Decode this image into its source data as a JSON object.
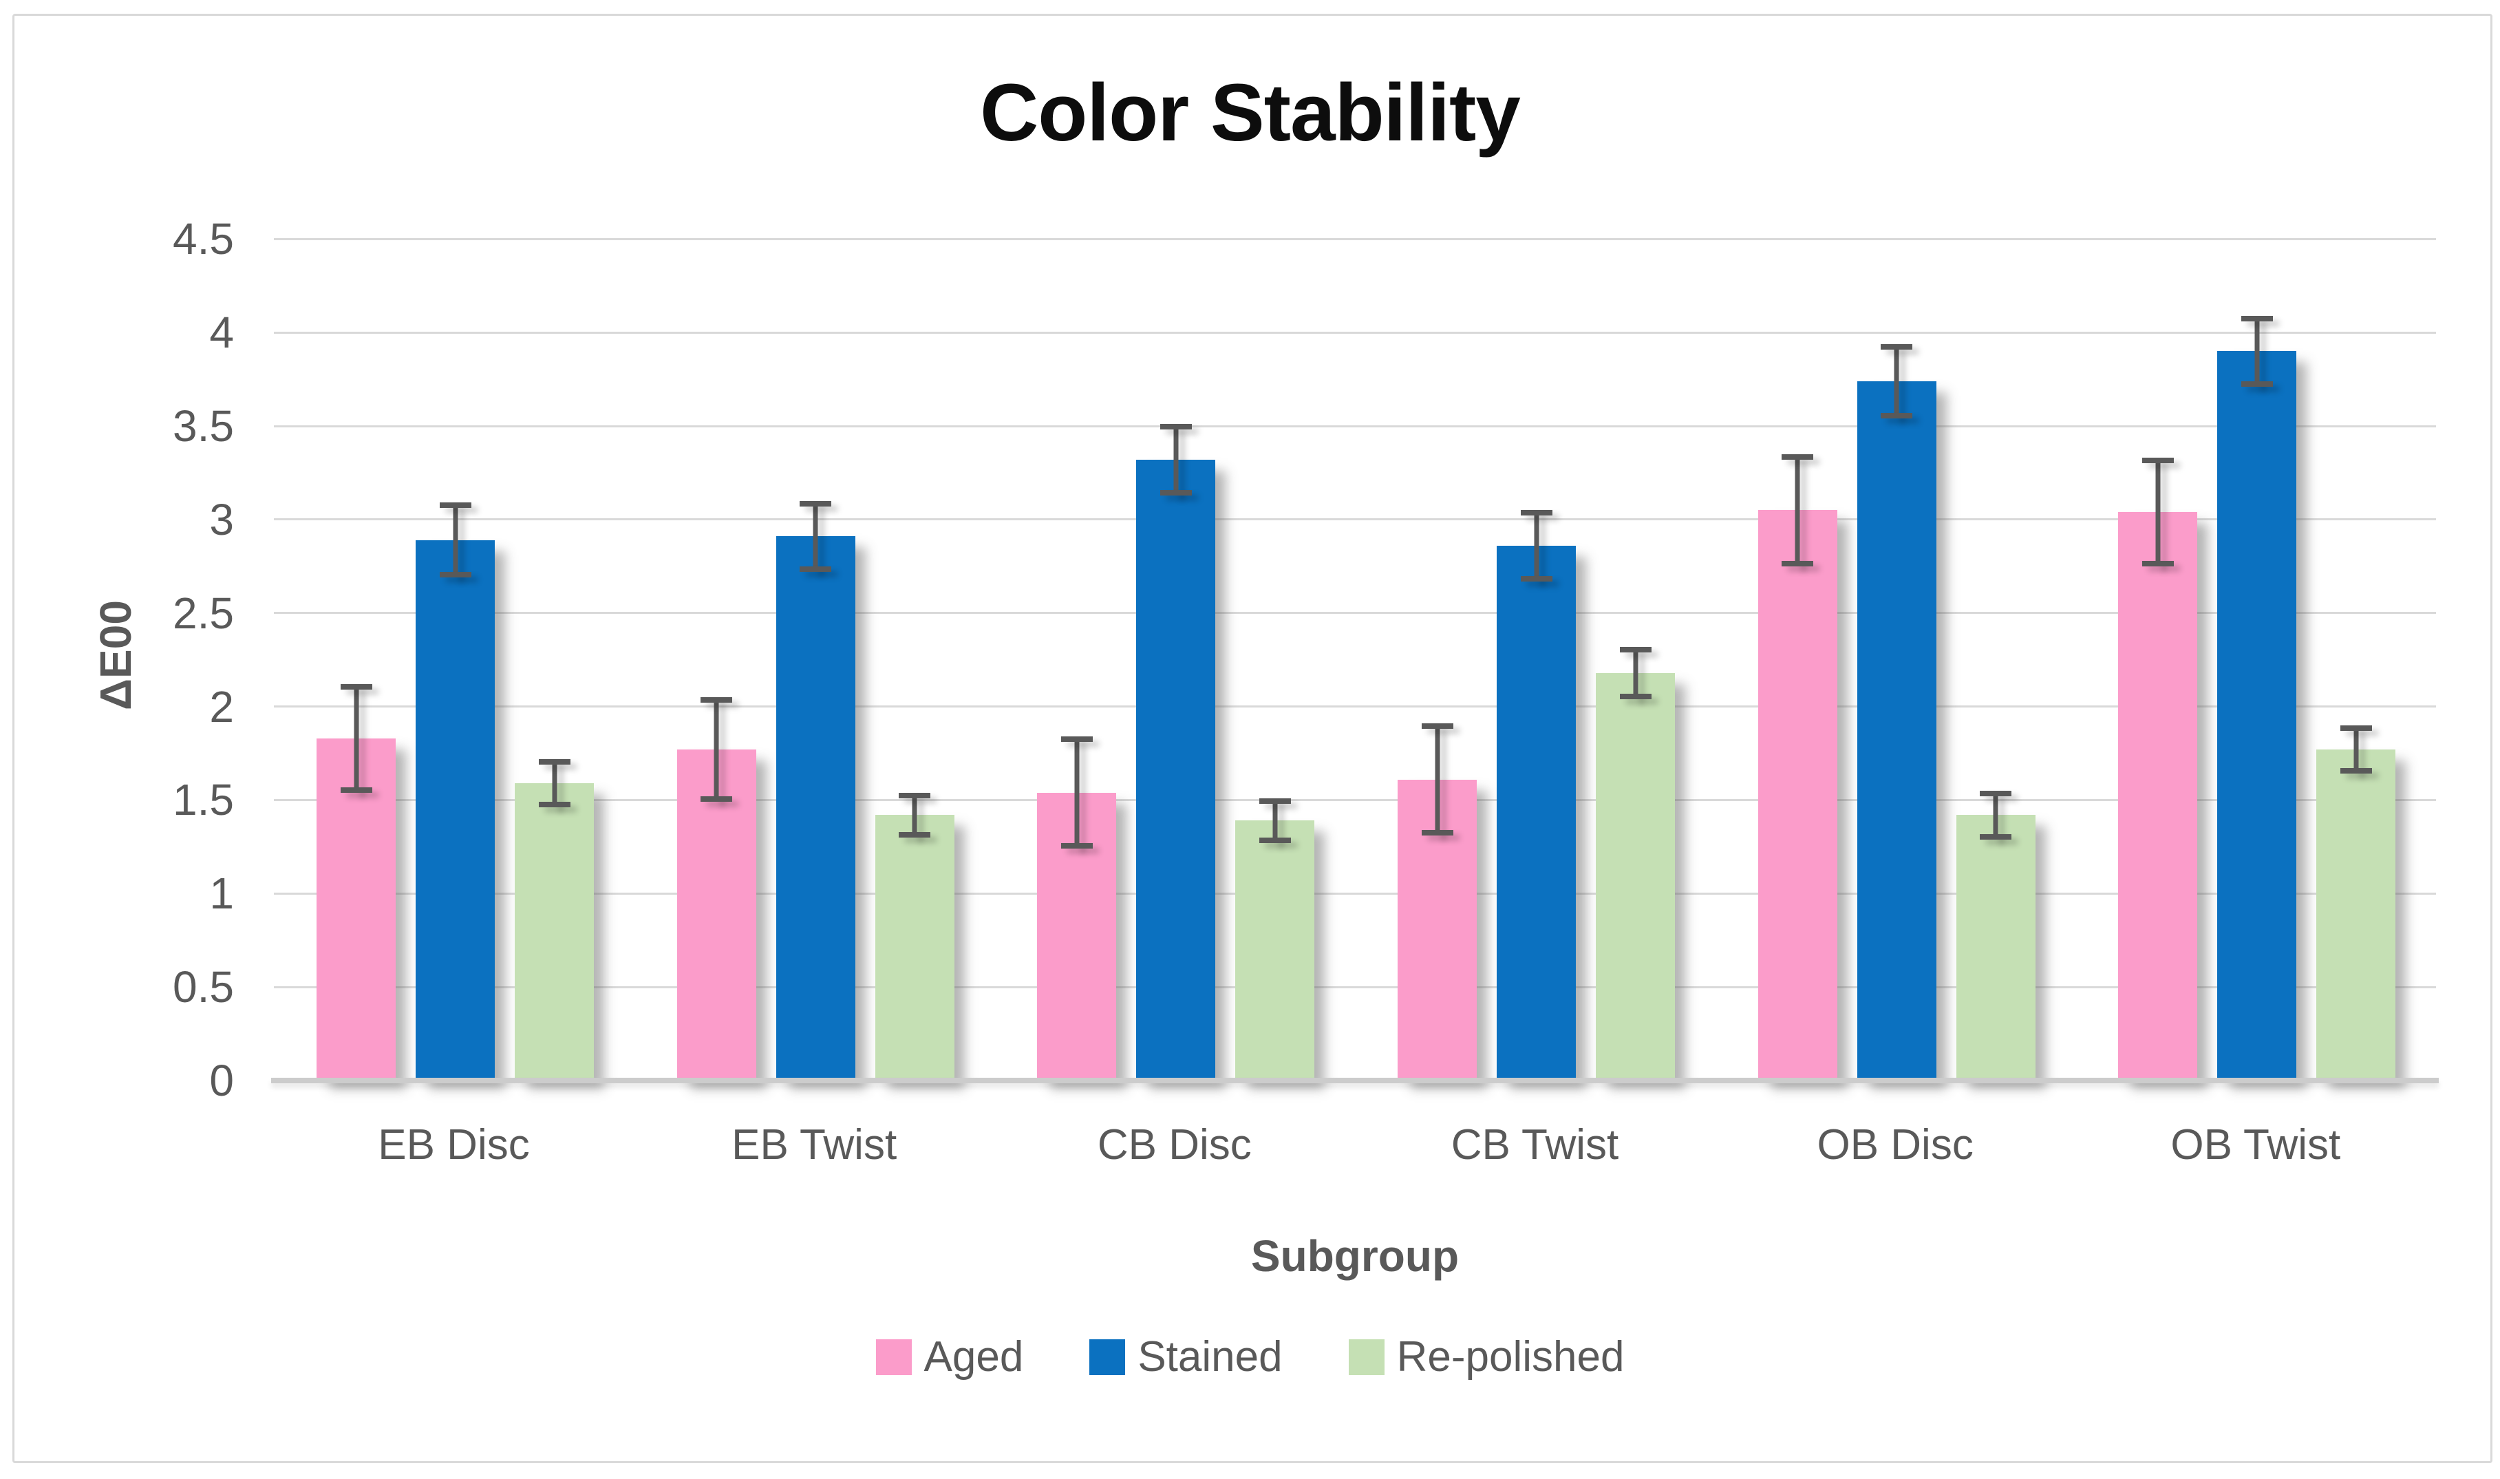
{
  "title": "Color Stability",
  "chart_data": {
    "type": "bar",
    "title": "Color Stability",
    "xlabel": "Subgroup",
    "ylabel": "ΔE00",
    "ylim": [
      0,
      4.5
    ],
    "ytick_step": 0.5,
    "y_tick_labels": [
      "0",
      "0.5",
      "1",
      "1.5",
      "2",
      "2.5",
      "3",
      "3.5",
      "4",
      "4.5"
    ],
    "grid": true,
    "legend_position": "bottom",
    "error_bars": true,
    "error_bar_color": "#595959",
    "gridline_color": "#d9d9d9",
    "categories": [
      "EB Disc",
      "EB Twist",
      "CB Disc",
      "CB Twist",
      "OB Disc",
      "OB Twist"
    ],
    "series": [
      {
        "name": "Aged",
        "color": "#fb9cca",
        "values": [
          1.83,
          1.77,
          1.54,
          1.61,
          3.05,
          3.04
        ],
        "errors": [
          0.29,
          0.28,
          0.3,
          0.3,
          0.3,
          0.29
        ]
      },
      {
        "name": "Stained",
        "color": "#0b71c0",
        "values": [
          2.89,
          2.91,
          3.32,
          2.86,
          3.74,
          3.9
        ],
        "errors": [
          0.2,
          0.19,
          0.19,
          0.19,
          0.2,
          0.19
        ]
      },
      {
        "name": "Re-polished",
        "color": "#c5e0b4",
        "values": [
          1.59,
          1.42,
          1.39,
          2.18,
          1.42,
          1.77
        ],
        "errors": [
          0.13,
          0.12,
          0.12,
          0.14,
          0.13,
          0.13
        ]
      }
    ]
  }
}
